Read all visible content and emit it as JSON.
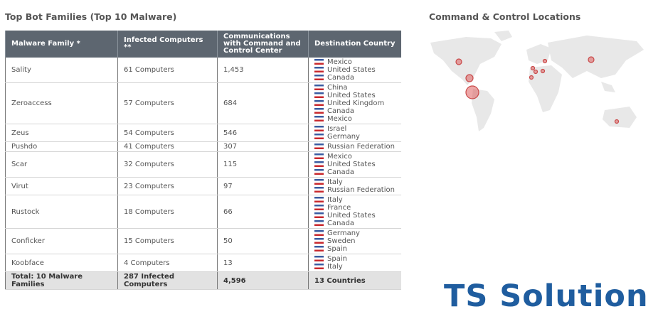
{
  "header": {
    "title": "Top Bot Families (Top 10 Malware)"
  },
  "table": {
    "columns": [
      "Malware Family *",
      "Infected Computers **",
      "Communications with Command and Control Center",
      "Destination Country"
    ],
    "rows": [
      [
        "Sality",
        "61 Computers",
        "1,453",
        [
          "Mexico",
          "United States",
          "Canada"
        ]
      ],
      [
        "Zeroaccess",
        "57 Computers",
        "684",
        [
          "China",
          "United States",
          "United Kingdom",
          "Canada",
          "Mexico"
        ]
      ],
      [
        "Zeus",
        "54 Computers",
        "546",
        [
          "Israel",
          "Germany"
        ]
      ],
      [
        "Pushdo",
        "41 Computers",
        "307",
        [
          "Russian Federation"
        ]
      ],
      [
        "Scar",
        "32 Computers",
        "115",
        [
          "Mexico",
          "United States",
          "Canada"
        ]
      ],
      [
        "Virut",
        "23 Computers",
        "97",
        [
          "Italy",
          "Russian Federation"
        ]
      ],
      [
        "Rustock",
        "18 Computers",
        "66",
        [
          "Italy",
          "France",
          "United States",
          "Canada"
        ]
      ],
      [
        "Conficker",
        "15 Computers",
        "50",
        [
          "Germany",
          "Sweden",
          "Spain"
        ]
      ],
      [
        "Koobface",
        "4 Computers",
        "13",
        [
          "Spain",
          "Italy"
        ]
      ]
    ],
    "total": [
      "Total: 10 Malware Families",
      "287 Infected Computers",
      "4,596",
      "13 Countries"
    ]
  },
  "map": {
    "title": "Command & Control Locations"
  },
  "logo": {
    "text": "TS Solution"
  }
}
